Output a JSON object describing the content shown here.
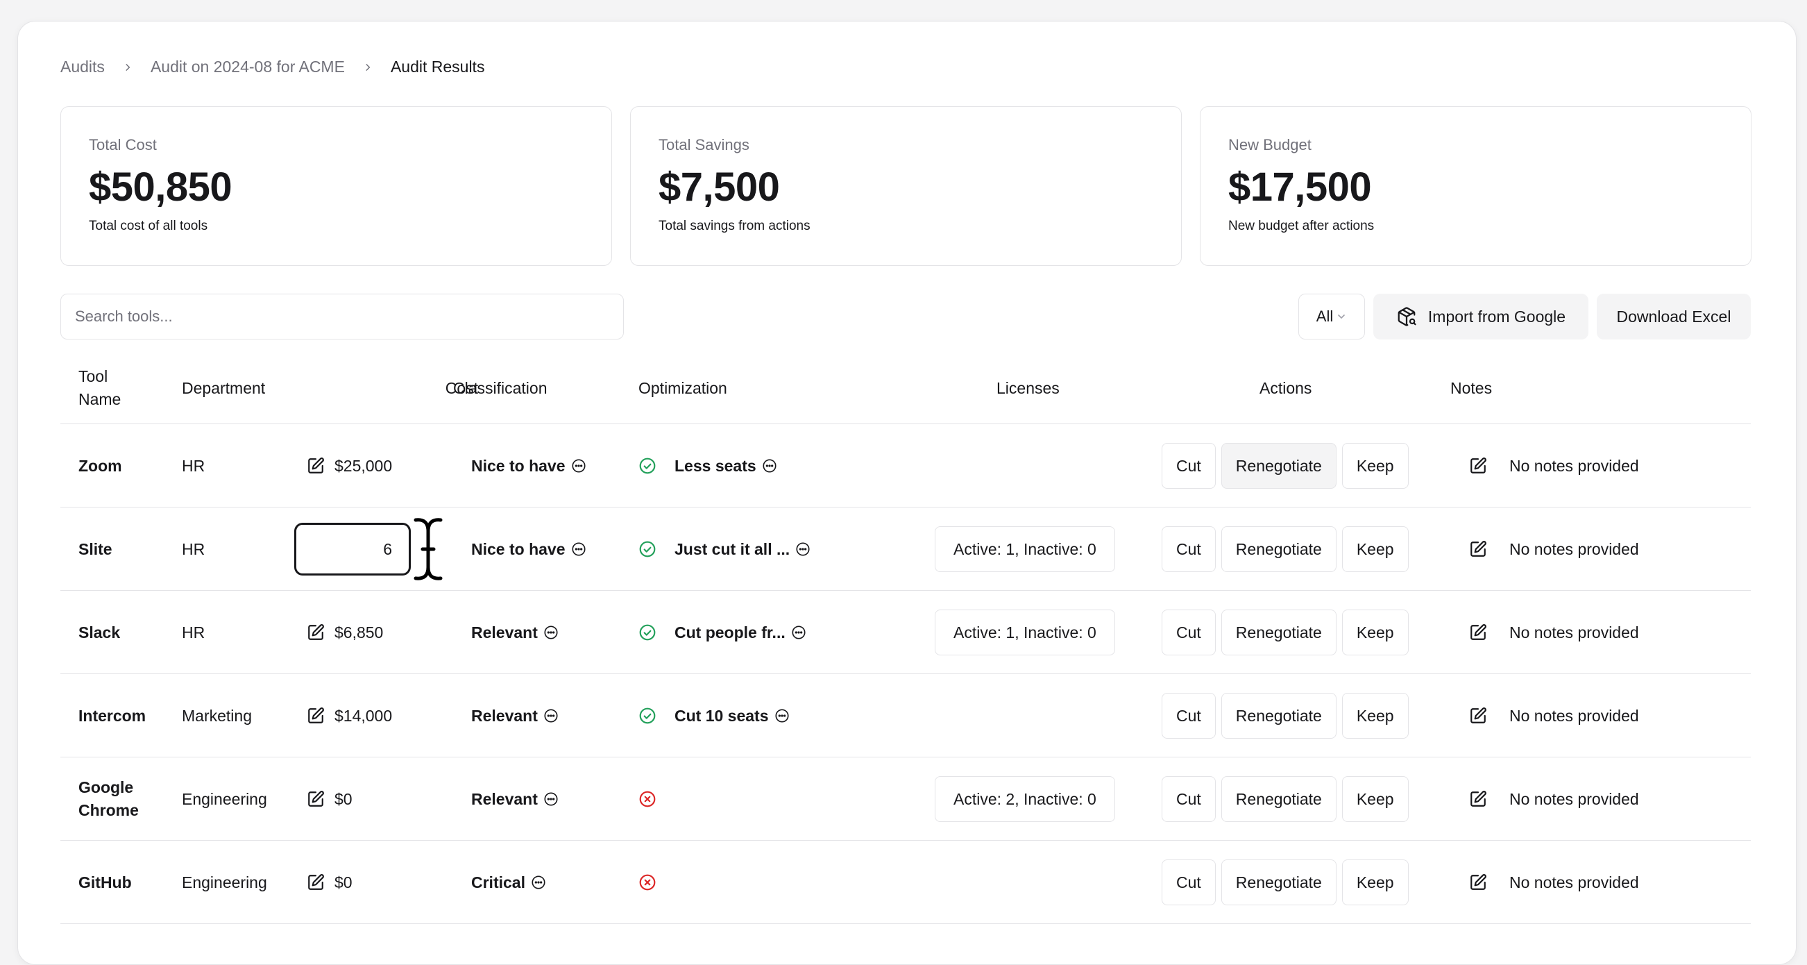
{
  "breadcrumb": {
    "items": [
      "Audits",
      "Audit on 2024-08 for ACME"
    ],
    "current": "Audit Results"
  },
  "stats": [
    {
      "label": "Total Cost",
      "value": "$50,850",
      "desc": "Total cost of all tools"
    },
    {
      "label": "Total Savings",
      "value": "$7,500",
      "desc": "Total savings from actions"
    },
    {
      "label": "New Budget",
      "value": "$17,500",
      "desc": "New budget after actions"
    }
  ],
  "toolbar": {
    "search_placeholder": "Search tools...",
    "filter_value": "All",
    "import_label": "Import from Google",
    "download_label": "Download Excel"
  },
  "table": {
    "headers": {
      "tool_name_line1": "Tool",
      "tool_name_line2": "Name",
      "department": "Department",
      "cost": "Cost",
      "classification": "Classification",
      "optimization": "Optimization",
      "licenses": "Licenses",
      "actions": "Actions",
      "notes": "Notes"
    },
    "action_labels": {
      "cut": "Cut",
      "renegotiate": "Renegotiate",
      "keep": "Keep"
    },
    "rows": [
      {
        "name1": "Zoom",
        "name2": "",
        "department": "HR",
        "cost": "$25,000",
        "classification": "Nice to have",
        "optimization": "Less seats",
        "opt_status": "ok",
        "licenses": "",
        "notes": "No notes provided"
      },
      {
        "name1": "Slite",
        "name2": "",
        "department": "HR",
        "cost": "6",
        "classification": "Nice to have",
        "optimization": "Just cut it all ...",
        "opt_status": "ok",
        "licenses": "Active: 1, Inactive: 0",
        "notes": "No notes provided"
      },
      {
        "name1": "Slack",
        "name2": "",
        "department": "HR",
        "cost": "$6,850",
        "classification": "Relevant",
        "optimization": "Cut people fr...",
        "opt_status": "ok",
        "licenses": "Active: 1, Inactive: 0",
        "notes": "No notes provided"
      },
      {
        "name1": "Intercom",
        "name2": "",
        "department": "Marketing",
        "cost": "$14,000",
        "classification": "Relevant",
        "optimization": "Cut 10 seats",
        "opt_status": "ok",
        "licenses": "",
        "notes": "No notes provided"
      },
      {
        "name1": "Google",
        "name2": "Chrome",
        "department": "Engineering",
        "cost": "$0",
        "classification": "Relevant",
        "optimization": "",
        "opt_status": "error",
        "licenses": "Active: 2, Inactive: 0",
        "notes": "No notes provided"
      },
      {
        "name1": "GitHub",
        "name2": "",
        "department": "Engineering",
        "cost": "$0",
        "classification": "Critical",
        "optimization": "",
        "opt_status": "error",
        "licenses": "",
        "notes": "No notes provided"
      }
    ]
  },
  "colors": {
    "ok": "#22a05a",
    "error": "#dc2626",
    "muted": "#71717a"
  }
}
